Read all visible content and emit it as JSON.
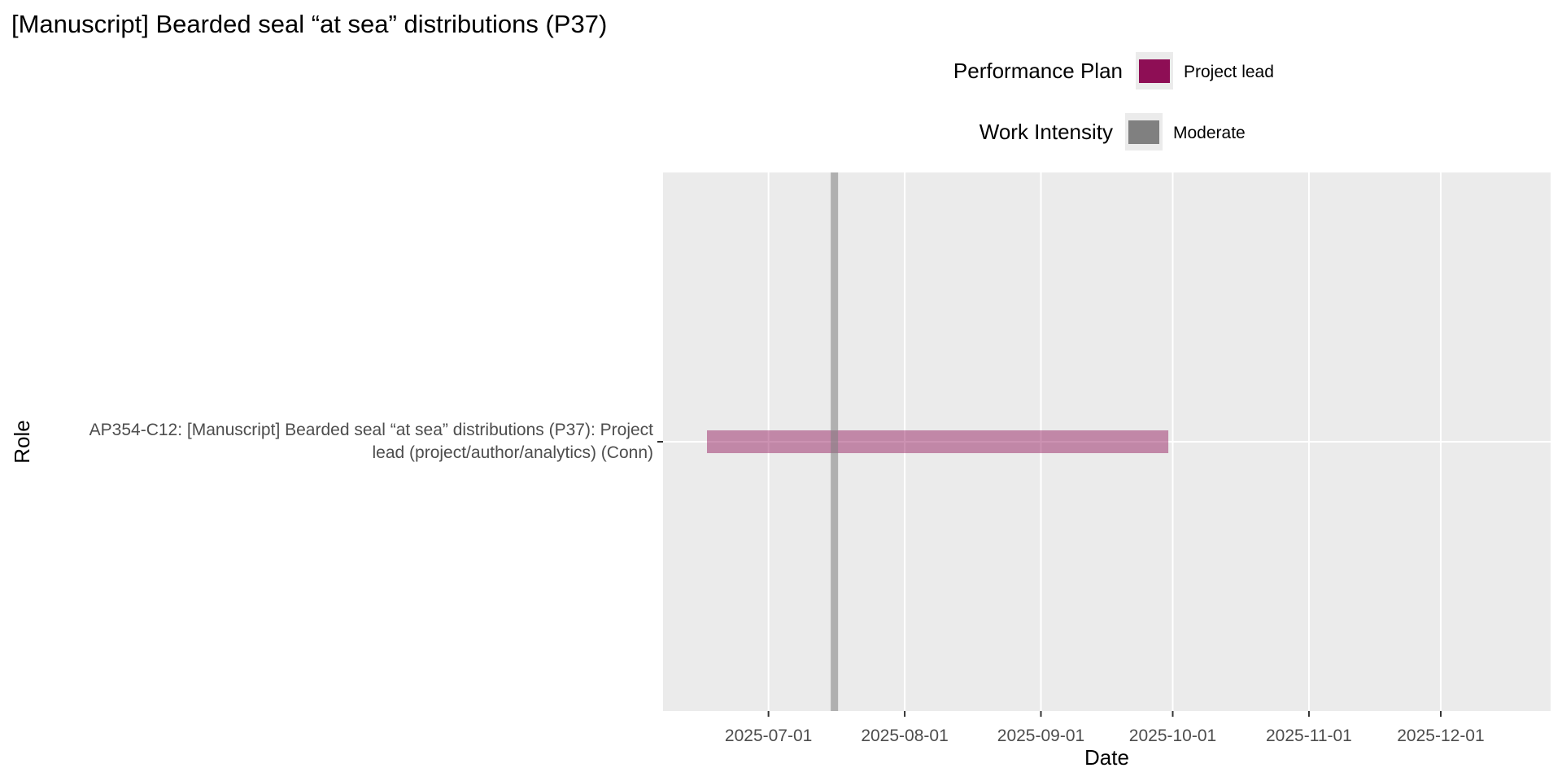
{
  "chart_data": {
    "type": "gantt",
    "title": "[Manuscript] Bearded seal “at sea” distributions (P37)",
    "xlabel": "Date",
    "ylabel": "Role",
    "x_axis_type": "date",
    "xlim": [
      "2025-06-07",
      "2025-12-26"
    ],
    "x_ticks": [
      "2025-07-01",
      "2025-08-01",
      "2025-09-01",
      "2025-10-01",
      "2025-11-01",
      "2025-12-01"
    ],
    "categories": [
      {
        "line1": "AP354-C12: [Manuscript] Bearded seal “at sea” distributions (P37): Project",
        "line2": "lead (project/author/analytics) (Conn)"
      }
    ],
    "bars": [
      {
        "category_index": 0,
        "start": "2025-06-17",
        "end": "2025-09-30",
        "plan": "Project lead",
        "color": "#8e0e55",
        "opacity": 0.45
      }
    ],
    "vlines": [
      {
        "date": "2025-07-16",
        "intensity": "Moderate",
        "color": "#808080",
        "opacity": 0.55
      }
    ],
    "legends": [
      {
        "title": "Performance Plan",
        "items": [
          {
            "label": "Project lead",
            "color": "#8e0e55"
          }
        ]
      },
      {
        "title": "Work Intensity",
        "items": [
          {
            "label": "Moderate",
            "color": "#808080"
          }
        ]
      }
    ],
    "grid": true,
    "panel_background": "#ebebeb",
    "gridline_color": "#ffffff",
    "legend_position": "top"
  }
}
